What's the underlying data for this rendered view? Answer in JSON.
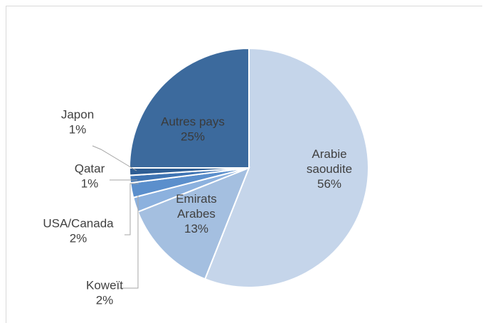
{
  "chart_data": {
    "type": "pie",
    "title": "",
    "slices": [
      {
        "category": "Arabie saoudite",
        "value": 56,
        "value_label": "56%",
        "color": "#c5d5ea",
        "label_lines": [
          "Arabie",
          "saoudite",
          "56%"
        ]
      },
      {
        "category": "Emirats Arabes",
        "value": 13,
        "value_label": "13%",
        "color": "#a4bfe0",
        "label_lines": [
          "Emirats",
          "Arabes",
          "13%"
        ]
      },
      {
        "category": "Koweït",
        "value": 2,
        "value_label": "2%",
        "color": "#8cb1de",
        "label_lines": [
          "Koweït",
          "2%"
        ]
      },
      {
        "category": "USA/Canada",
        "value": 2,
        "value_label": "2%",
        "color": "#5b8fcc",
        "label_lines": [
          "USA/Canada",
          "2%"
        ]
      },
      {
        "category": "Qatar",
        "value": 1,
        "value_label": "1%",
        "color": "#3f74b3",
        "label_lines": [
          "Qatar",
          "1%"
        ]
      },
      {
        "category": "Japon",
        "value": 1,
        "value_label": "1%",
        "color": "#2e5d93",
        "label_lines": [
          "Japon",
          "1%"
        ]
      },
      {
        "category": "Autres pays",
        "value": 25,
        "value_label": "25%",
        "color": "#3c6a9d",
        "label_lines": [
          "Autres pays",
          "25%"
        ]
      }
    ],
    "start_angle": "12 o'clock",
    "direction": "clockwise",
    "legend": "none"
  }
}
